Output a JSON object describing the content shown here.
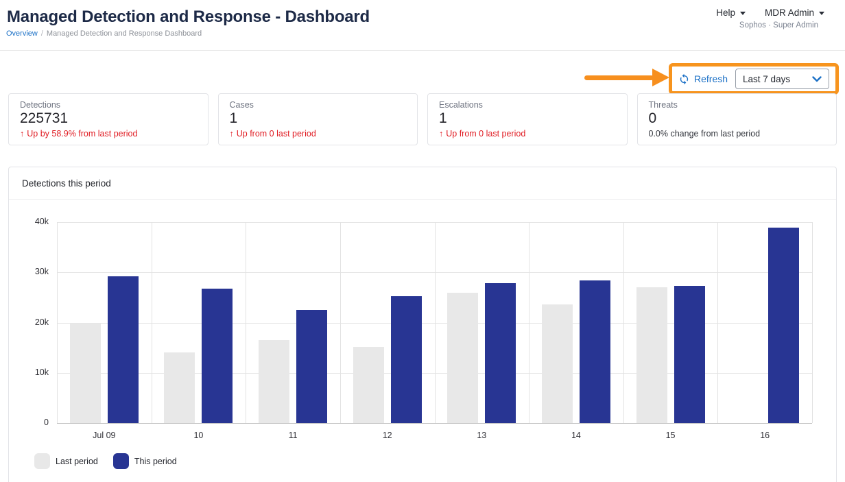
{
  "header": {
    "title": "Managed Detection and Response - Dashboard",
    "breadcrumb": {
      "overview": "Overview",
      "separator": "/",
      "current": "Managed Detection and Response Dashboard"
    },
    "help_label": "Help",
    "account_label": "MDR Admin",
    "account_sub": "Sophos · Super Admin"
  },
  "toolbar": {
    "refresh_label": "Refresh",
    "range_value": "Last 7 days"
  },
  "stat_cards": [
    {
      "label": "Detections",
      "value": "225731",
      "delta": "Up by 58.9% from last period",
      "trend": "up"
    },
    {
      "label": "Cases",
      "value": "1",
      "delta": "Up from 0 last period",
      "trend": "up"
    },
    {
      "label": "Escalations",
      "value": "1",
      "delta": "Up from 0 last period",
      "trend": "up"
    },
    {
      "label": "Threats",
      "value": "0",
      "delta": "0.0% change from last period",
      "trend": "neutral"
    }
  ],
  "chart_card": {
    "title": "Detections this period"
  },
  "chart_data": {
    "type": "bar",
    "title": "Detections this period",
    "categories": [
      "Jul 09",
      "10",
      "11",
      "12",
      "13",
      "14",
      "15",
      "16"
    ],
    "series": [
      {
        "name": "Last period",
        "color": "#e8e8e8",
        "values": [
          19800,
          14000,
          16500,
          15200,
          25900,
          23600,
          27000,
          null
        ]
      },
      {
        "name": "This period",
        "color": "#283593",
        "values": [
          29200,
          26800,
          22500,
          25300,
          27800,
          28400,
          27300,
          38900
        ]
      }
    ],
    "ylim": [
      0,
      40000
    ],
    "ytick_labels": [
      "40k",
      "30k",
      "20k",
      "10k",
      "0"
    ],
    "grid": true,
    "legend_position": "bottom"
  },
  "colors": {
    "accent_orange": "#f78f1e",
    "link_blue": "#1b70c6",
    "negative_red": "#e01b22",
    "title_navy": "#1d2a47",
    "bar_last_period": "#e8e8e8",
    "bar_this_period": "#283593"
  }
}
